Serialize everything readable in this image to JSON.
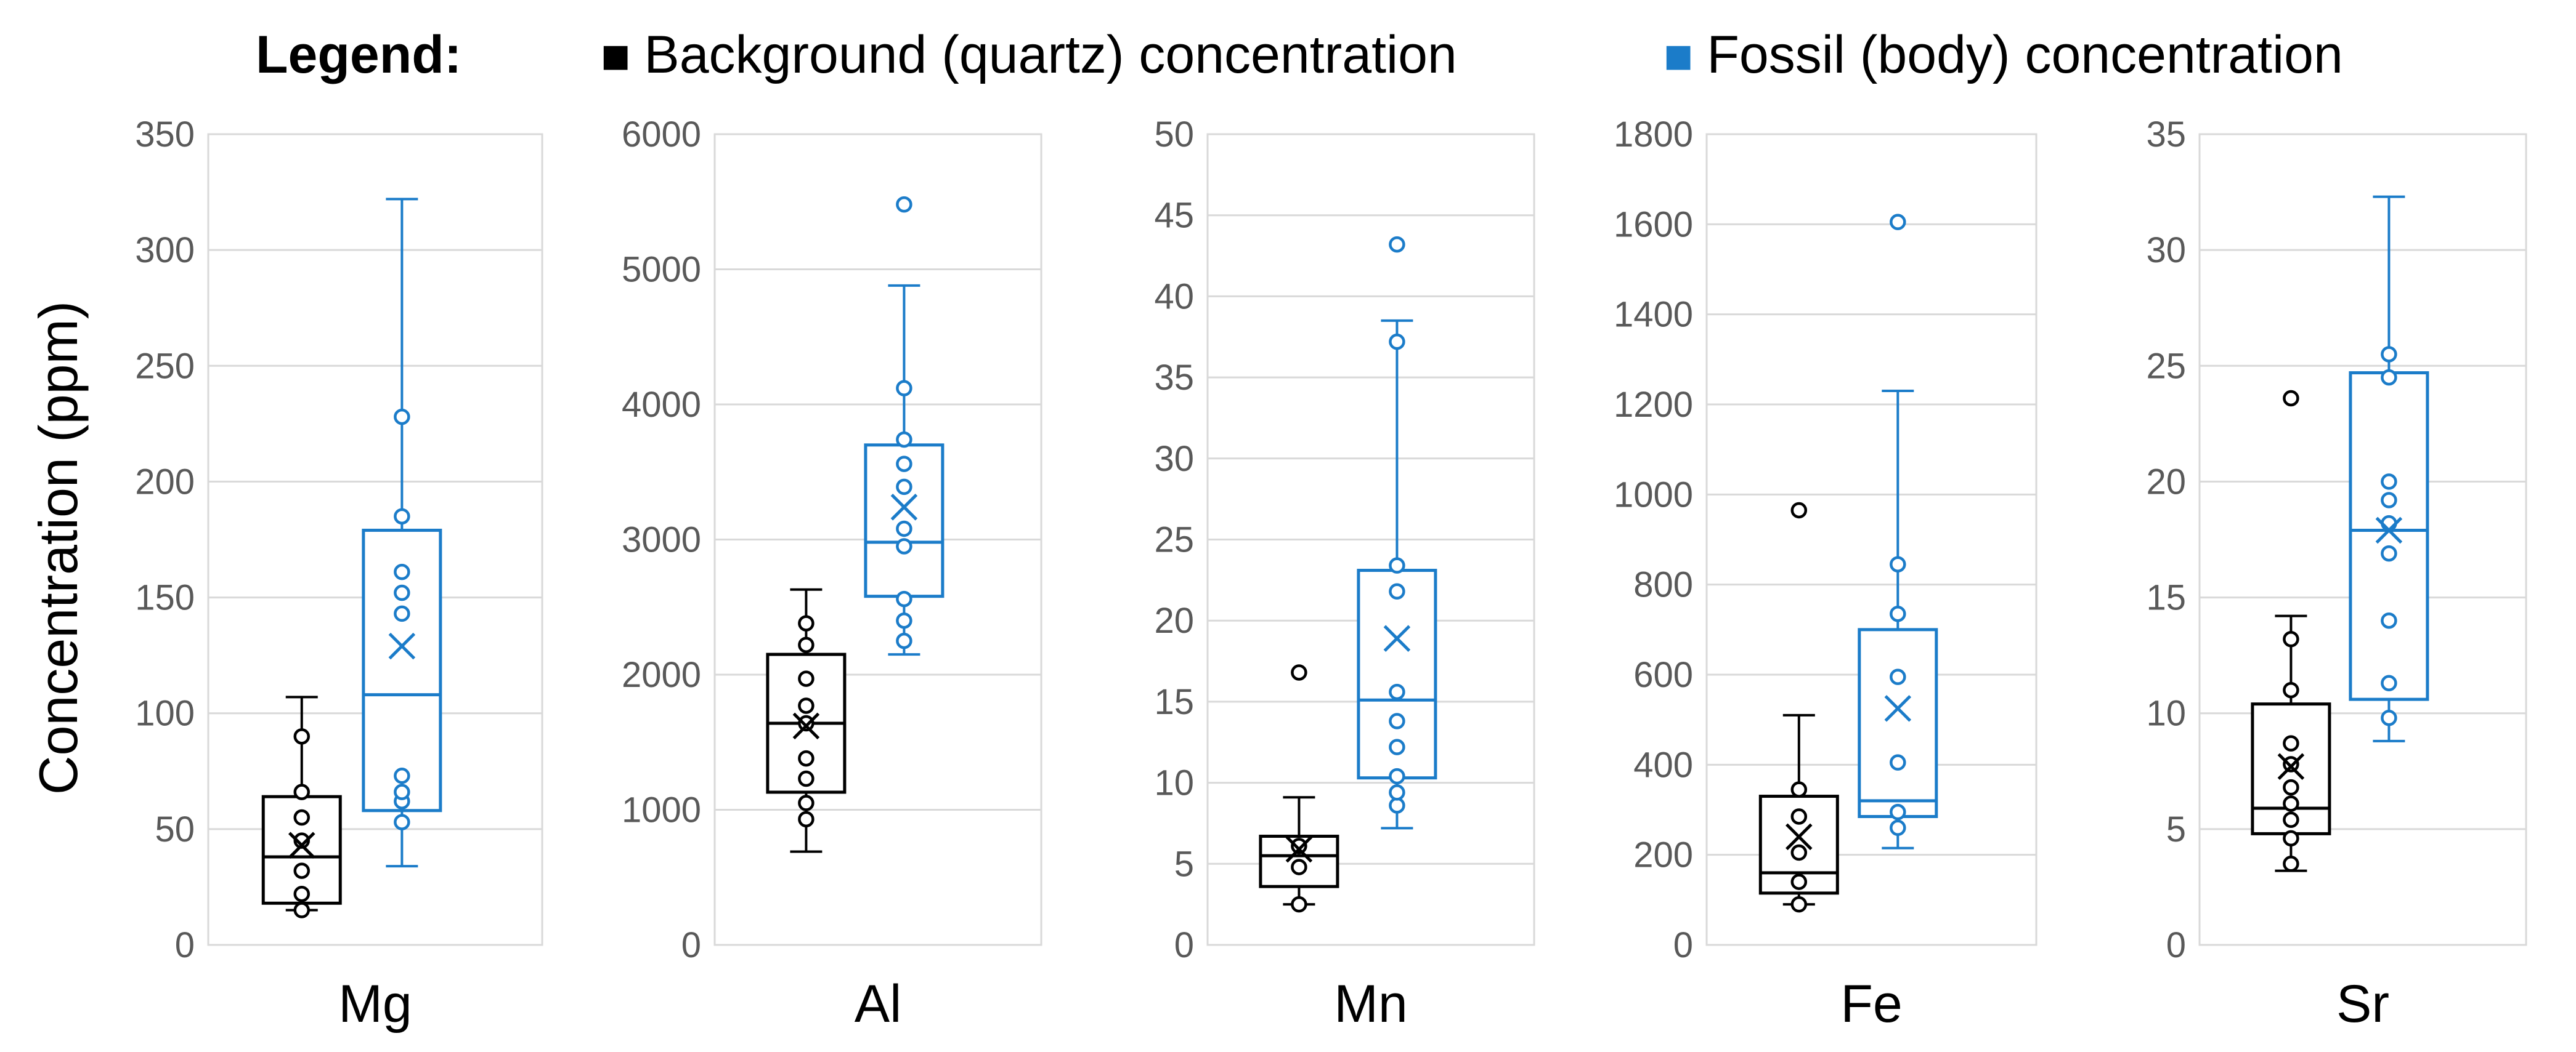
{
  "legend": {
    "title": "Legend:",
    "background_label": "Background (quartz) concentration",
    "fossil_label": "Fossil (body) concentration"
  },
  "colors": {
    "background": "#000000",
    "fossil": "#1b7cc9",
    "grid": "#d9d9d9",
    "tick": "#595959"
  },
  "ylabel": "Concentration (ppm)",
  "chart_data": [
    {
      "type": "box",
      "category": "Mg",
      "ylim": [
        0,
        350
      ],
      "yticks": [
        0,
        50,
        100,
        150,
        200,
        250,
        300,
        350
      ],
      "series": [
        {
          "name": "Background (quartz) concentration",
          "color": "#000000",
          "min": 15,
          "q1": 18,
          "median": 38,
          "q3": 64,
          "max": 107,
          "mean": 43,
          "points": [
            15,
            22,
            32,
            45,
            55,
            66,
            90
          ]
        },
        {
          "name": "Fossil (body) concentration",
          "color": "#1b7cc9",
          "min": 34,
          "q1": 58,
          "median": 108,
          "q3": 179,
          "max": 322,
          "mean": 129,
          "points": [
            53,
            62,
            66,
            73,
            143,
            152,
            161,
            185,
            228
          ]
        }
      ]
    },
    {
      "type": "box",
      "category": "Al",
      "ylim": [
        0,
        6000
      ],
      "yticks": [
        0,
        1000,
        2000,
        3000,
        4000,
        5000,
        6000
      ],
      "series": [
        {
          "name": "Background (quartz) concentration",
          "color": "#000000",
          "min": 690,
          "q1": 1130,
          "median": 1640,
          "q3": 2150,
          "max": 2630,
          "mean": 1620,
          "points": [
            930,
            1050,
            1230,
            1380,
            1640,
            1770,
            1970,
            2220,
            2380
          ]
        },
        {
          "name": "Fossil (body) concentration",
          "color": "#1b7cc9",
          "min": 2150,
          "q1": 2580,
          "median": 2980,
          "q3": 3700,
          "max": 4880,
          "mean": 3240,
          "points": [
            2250,
            2400,
            2560,
            2950,
            3080,
            3390,
            3560,
            3740,
            4120,
            5480
          ]
        }
      ]
    },
    {
      "type": "box",
      "category": "Mn",
      "ylim": [
        0,
        50
      ],
      "yticks": [
        0,
        5,
        10,
        15,
        20,
        25,
        30,
        35,
        40,
        45,
        50
      ],
      "series": [
        {
          "name": "Background (quartz) concentration",
          "color": "#000000",
          "min": 2.5,
          "q1": 3.6,
          "median": 5.5,
          "q3": 6.7,
          "max": 9.1,
          "mean": 5.9,
          "points": [
            2.5,
            4.8,
            6.1,
            16.8
          ]
        },
        {
          "name": "Fossil (body) concentration",
          "color": "#1b7cc9",
          "min": 7.2,
          "q1": 10.3,
          "median": 15.1,
          "q3": 23.1,
          "max": 38.5,
          "mean": 18.9,
          "points": [
            8.6,
            9.4,
            10.4,
            12.2,
            13.8,
            15.6,
            21.8,
            23.4,
            37.2,
            43.2
          ]
        }
      ]
    },
    {
      "type": "box",
      "category": "Fe",
      "ylim": [
        0,
        1800
      ],
      "yticks": [
        0,
        200,
        400,
        600,
        800,
        1000,
        1200,
        1400,
        1600,
        1800
      ],
      "series": [
        {
          "name": "Background (quartz) concentration",
          "color": "#000000",
          "min": 90,
          "q1": 115,
          "median": 160,
          "q3": 330,
          "max": 510,
          "mean": 240,
          "points": [
            90,
            140,
            205,
            285,
            345,
            965
          ]
        },
        {
          "name": "Fossil (body) concentration",
          "color": "#1b7cc9",
          "min": 215,
          "q1": 285,
          "median": 320,
          "q3": 700,
          "max": 1230,
          "mean": 525,
          "points": [
            260,
            295,
            405,
            595,
            735,
            845,
            1605
          ]
        }
      ]
    },
    {
      "type": "box",
      "category": "Sr",
      "ylim": [
        0,
        35
      ],
      "yticks": [
        0,
        5,
        10,
        15,
        20,
        25,
        30,
        35
      ],
      "series": [
        {
          "name": "Background (quartz) concentration",
          "color": "#000000",
          "min": 3.2,
          "q1": 4.8,
          "median": 5.9,
          "q3": 10.4,
          "max": 14.2,
          "mean": 7.7,
          "points": [
            3.5,
            4.6,
            5.4,
            6.1,
            6.8,
            7.8,
            8.7,
            11.0,
            13.2,
            23.6
          ]
        },
        {
          "name": "Fossil (body) concentration",
          "color": "#1b7cc9",
          "min": 8.8,
          "q1": 10.6,
          "median": 17.9,
          "q3": 24.7,
          "max": 32.3,
          "mean": 17.9,
          "points": [
            9.8,
            11.3,
            14.0,
            16.9,
            18.2,
            19.2,
            20.0,
            24.5,
            25.5
          ]
        }
      ]
    }
  ]
}
